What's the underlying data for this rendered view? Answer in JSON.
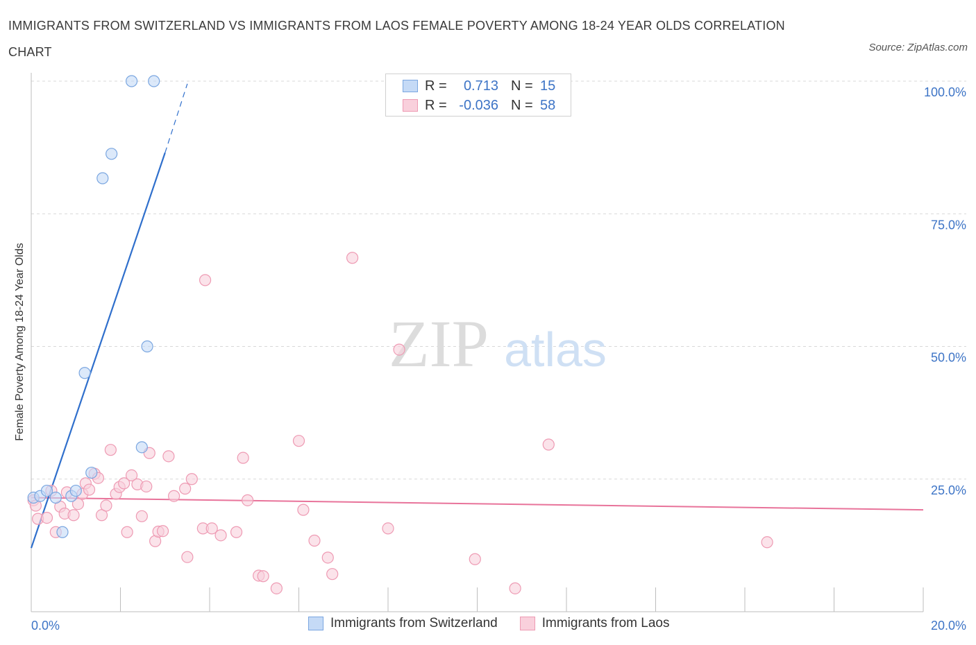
{
  "title": "IMMIGRANTS FROM SWITZERLAND VS IMMIGRANTS FROM LAOS FEMALE POVERTY AMONG 18-24 YEAR OLDS CORRELATION CHART",
  "source": "Source: ZipAtlas.com",
  "legend": {
    "row1": {
      "r_label": "R =",
      "r_value": "0.713",
      "n_label": "N =",
      "n_value": "15"
    },
    "row2": {
      "r_label": "R =",
      "r_value": "-0.036",
      "n_label": "N =",
      "n_value": "58"
    }
  },
  "bottom_legend": {
    "series1": "Immigrants from Switzerland",
    "series2": "Immigrants from Laos"
  },
  "watermark": {
    "zip": "ZIP",
    "atlas": "atlas"
  },
  "colors": {
    "blue_fill": "#c5daf6",
    "blue_stroke": "#7aa6e0",
    "blue_line": "#2f6fcc",
    "pink_fill": "#f9d0dc",
    "pink_stroke": "#ee9ab3",
    "pink_line": "#e8739a",
    "axis_text": "#3d74c6",
    "grid": "#d8d8d8"
  },
  "chart_data": {
    "type": "scatter",
    "title": "IMMIGRANTS FROM SWITZERLAND VS IMMIGRANTS FROM LAOS FEMALE POVERTY AMONG 18-24 YEAR OLDS CORRELATION CHART",
    "xlabel": "",
    "ylabel": "Female Poverty Among 18-24 Year Olds",
    "xlim": [
      0,
      20
    ],
    "ylim": [
      0,
      100
    ],
    "x_tick_labels": [
      "0.0%",
      "20.0%"
    ],
    "y_tick_labels": [
      "100.0%",
      "75.0%",
      "50.0%",
      "25.0%"
    ],
    "y_ticks": [
      100,
      75,
      50,
      25
    ],
    "grid": true,
    "legend_placement": "top-center",
    "series": [
      {
        "name": "Immigrants from Switzerland",
        "color": "#7aa6e0",
        "points": [
          {
            "x": 0.05,
            "y": 21.5
          },
          {
            "x": 0.2,
            "y": 21.8
          },
          {
            "x": 0.35,
            "y": 22.8
          },
          {
            "x": 0.55,
            "y": 21.5
          },
          {
            "x": 0.7,
            "y": 15.0
          },
          {
            "x": 0.9,
            "y": 21.8
          },
          {
            "x": 1.0,
            "y": 22.8
          },
          {
            "x": 1.2,
            "y": 45.0
          },
          {
            "x": 1.35,
            "y": 26.2
          },
          {
            "x": 1.6,
            "y": 81.7
          },
          {
            "x": 1.8,
            "y": 86.3
          },
          {
            "x": 2.25,
            "y": 100.0
          },
          {
            "x": 2.48,
            "y": 31.0
          },
          {
            "x": 2.6,
            "y": 50.0
          },
          {
            "x": 2.75,
            "y": 100.0
          }
        ],
        "trend": {
          "x1": 0.0,
          "y1": 12.0,
          "x2": 3.0,
          "y2": 86.5,
          "dash_x2": 3.5,
          "dash_y2": 99.5
        }
      },
      {
        "name": "Immigrants from Laos",
        "color": "#ee9ab3",
        "points": [
          {
            "x": 0.05,
            "y": 21.0
          },
          {
            "x": 0.15,
            "y": 17.5
          },
          {
            "x": 0.35,
            "y": 17.7
          },
          {
            "x": 0.45,
            "y": 22.8
          },
          {
            "x": 0.55,
            "y": 15.0
          },
          {
            "x": 0.65,
            "y": 19.8
          },
          {
            "x": 0.75,
            "y": 18.5
          },
          {
            "x": 0.8,
            "y": 22.5
          },
          {
            "x": 0.95,
            "y": 18.2
          },
          {
            "x": 1.05,
            "y": 20.3
          },
          {
            "x": 1.15,
            "y": 22.2
          },
          {
            "x": 1.22,
            "y": 24.2
          },
          {
            "x": 1.3,
            "y": 23.0
          },
          {
            "x": 1.42,
            "y": 26.0
          },
          {
            "x": 1.5,
            "y": 25.2
          },
          {
            "x": 1.58,
            "y": 18.2
          },
          {
            "x": 1.68,
            "y": 20.0
          },
          {
            "x": 1.78,
            "y": 30.5
          },
          {
            "x": 1.9,
            "y": 22.2
          },
          {
            "x": 1.98,
            "y": 23.5
          },
          {
            "x": 2.08,
            "y": 24.2
          },
          {
            "x": 2.15,
            "y": 15.0
          },
          {
            "x": 2.25,
            "y": 25.7
          },
          {
            "x": 2.38,
            "y": 24.0
          },
          {
            "x": 2.48,
            "y": 18.0
          },
          {
            "x": 2.58,
            "y": 23.6
          },
          {
            "x": 2.65,
            "y": 29.9
          },
          {
            "x": 2.78,
            "y": 13.3
          },
          {
            "x": 2.85,
            "y": 15.1
          },
          {
            "x": 2.95,
            "y": 15.2
          },
          {
            "x": 3.08,
            "y": 29.3
          },
          {
            "x": 3.2,
            "y": 21.8
          },
          {
            "x": 3.45,
            "y": 23.2
          },
          {
            "x": 3.5,
            "y": 10.3
          },
          {
            "x": 3.6,
            "y": 25.0
          },
          {
            "x": 3.9,
            "y": 62.5
          },
          {
            "x": 3.85,
            "y": 15.7
          },
          {
            "x": 4.05,
            "y": 15.7
          },
          {
            "x": 4.25,
            "y": 14.4
          },
          {
            "x": 4.6,
            "y": 15.0
          },
          {
            "x": 4.75,
            "y": 29.0
          },
          {
            "x": 4.85,
            "y": 21.0
          },
          {
            "x": 5.1,
            "y": 6.8
          },
          {
            "x": 5.2,
            "y": 6.7
          },
          {
            "x": 5.5,
            "y": 4.4
          },
          {
            "x": 6.0,
            "y": 32.2
          },
          {
            "x": 6.1,
            "y": 19.2
          },
          {
            "x": 6.35,
            "y": 13.4
          },
          {
            "x": 6.65,
            "y": 10.2
          },
          {
            "x": 6.75,
            "y": 7.1
          },
          {
            "x": 7.2,
            "y": 66.7
          },
          {
            "x": 8.25,
            "y": 49.4
          },
          {
            "x": 8.0,
            "y": 15.7
          },
          {
            "x": 9.95,
            "y": 9.9
          },
          {
            "x": 10.85,
            "y": 4.4
          },
          {
            "x": 11.6,
            "y": 31.5
          },
          {
            "x": 16.5,
            "y": 13.1
          },
          {
            "x": 0.1,
            "y": 20.0
          }
        ],
        "trend": {
          "x1": 0.0,
          "y1": 21.5,
          "x2": 20.0,
          "y2": 19.2
        }
      }
    ]
  }
}
